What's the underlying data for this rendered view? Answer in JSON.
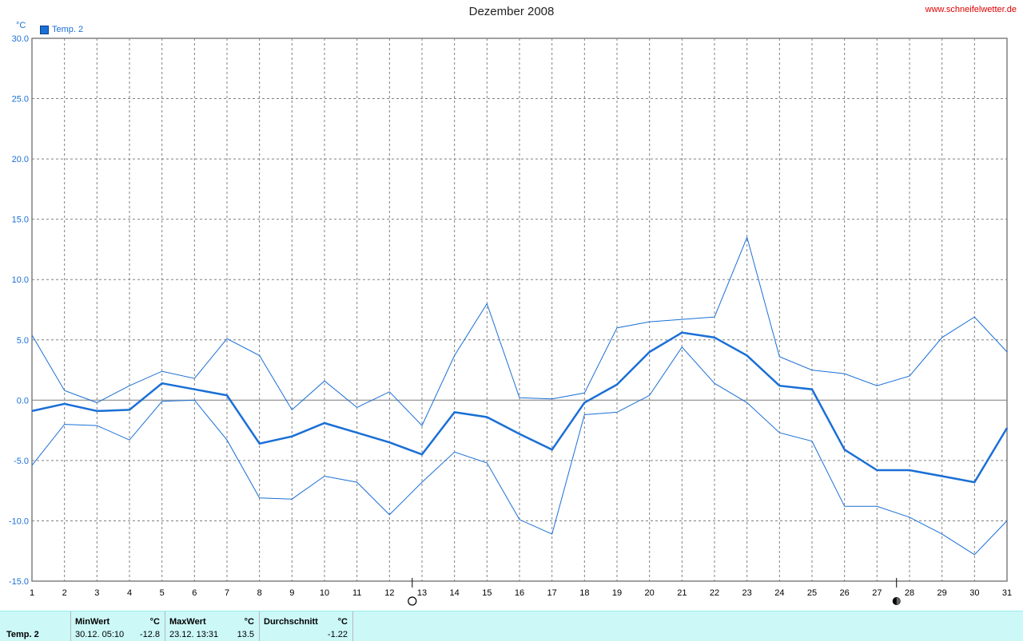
{
  "header": {
    "title": "Dezember 2008",
    "site": "www.schneifelwetter.de",
    "unit": "°C"
  },
  "chart_data": {
    "type": "line",
    "title": "Dezember 2008",
    "ylabel": "°C",
    "xlabel": "",
    "ylim": [
      -15,
      30
    ],
    "xlim": [
      1,
      31
    ],
    "grid": true,
    "legend_position": "top-left",
    "yticks": [
      "-15.0",
      "-10.0",
      "-5.0",
      "0.0",
      "5.0",
      "10.0",
      "15.0",
      "20.0",
      "25.0",
      "30.0"
    ],
    "yticks_values": [
      -15,
      -10,
      -5,
      0,
      5,
      10,
      15,
      20,
      25,
      30
    ],
    "xticks": [
      "1",
      "2",
      "3",
      "4",
      "5",
      "6",
      "7",
      "8",
      "9",
      "10",
      "11",
      "12",
      "13",
      "14",
      "15",
      "16",
      "17",
      "18",
      "19",
      "20",
      "21",
      "22",
      "23",
      "24",
      "25",
      "26",
      "27",
      "28",
      "29",
      "30",
      "31"
    ],
    "x": [
      1,
      2,
      3,
      4,
      5,
      6,
      7,
      8,
      9,
      10,
      11,
      12,
      13,
      14,
      15,
      16,
      17,
      18,
      19,
      20,
      21,
      22,
      23,
      24,
      25,
      26,
      27,
      28,
      29,
      30,
      31
    ],
    "series": [
      {
        "name": "Temp. 2",
        "role": "mean",
        "values": [
          -0.9,
          -0.3,
          -0.9,
          -0.8,
          1.4,
          0.9,
          0.4,
          -3.6,
          -3.0,
          -1.9,
          -2.7,
          -3.5,
          -4.5,
          -1.0,
          -1.4,
          -2.8,
          -4.1,
          -0.2,
          1.3,
          4.0,
          5.6,
          5.2,
          3.7,
          1.2,
          0.9,
          -4.1,
          -5.8,
          -5.8,
          -6.3,
          -6.8,
          -2.3
        ]
      },
      {
        "name": "",
        "role": "max",
        "values": [
          5.4,
          0.8,
          -0.2,
          1.2,
          2.4,
          1.8,
          5.1,
          3.7,
          -0.8,
          1.6,
          -0.6,
          0.7,
          -2.1,
          3.7,
          8.0,
          0.2,
          0.1,
          0.6,
          6.0,
          6.5,
          6.7,
          6.9,
          13.5,
          3.6,
          2.5,
          2.2,
          1.2,
          2.0,
          5.2,
          6.9,
          4.0
        ]
      },
      {
        "name": "",
        "role": "min",
        "values": [
          -5.4,
          -2.0,
          -2.1,
          -3.3,
          -0.1,
          0.0,
          -3.3,
          -8.1,
          -8.2,
          -6.3,
          -6.8,
          -9.5,
          -6.8,
          -4.3,
          -5.2,
          -9.9,
          -11.1,
          -1.2,
          -1.0,
          0.4,
          4.4,
          1.4,
          -0.2,
          -2.7,
          -3.4,
          -8.8,
          -8.8,
          -9.7,
          -11.1,
          -12.8,
          -10.0
        ]
      }
    ],
    "colors": {
      "line": "#1a6fd6",
      "grid": "#808080",
      "zero_line": "#a0a0a0"
    },
    "moon_phases": [
      {
        "phase": "full-moon",
        "x": 12.7
      },
      {
        "phase": "new-moon",
        "x": 27.6
      }
    ]
  },
  "legend": {
    "label": "Temp. 2"
  },
  "stats": {
    "row_label": "Temp. 2",
    "min_header": "MinWert",
    "min_unit": "°C",
    "min_time": "30.12.  05:10",
    "min_value": "-12.8",
    "max_header": "MaxWert",
    "max_unit": "°C",
    "max_time": "23.12.  13:31",
    "max_value": "13.5",
    "avg_header": "Durchschnitt",
    "avg_unit": "°C",
    "avg_value": "-1.22"
  }
}
